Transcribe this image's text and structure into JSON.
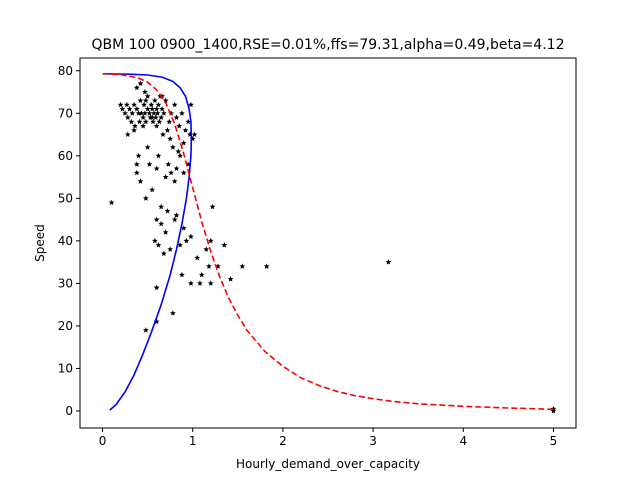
{
  "chart_data": {
    "type": "scatter",
    "title": "QBM 100 0900_1400,RSE=0.01%,ffs=79.31,alpha=0.49,beta=4.12",
    "xlabel": "Hourly_demand_over_capacity",
    "ylabel": "Speed",
    "xlim": [
      -0.25,
      5.25
    ],
    "ylim": [
      -4,
      83
    ],
    "xticks": [
      0,
      1,
      2,
      3,
      4,
      5
    ],
    "yticks": [
      0,
      10,
      20,
      30,
      40,
      50,
      60,
      70,
      80
    ],
    "grid": false,
    "legend": "none",
    "colors": {
      "scatter": "#000000",
      "blue_curve": "#0000ff",
      "red_curve": "#ff0000"
    },
    "series": [
      {
        "kind": "scatter",
        "marker": "star",
        "points": [
          [
            0.2,
            72
          ],
          [
            0.22,
            71
          ],
          [
            0.25,
            70
          ],
          [
            0.27,
            72
          ],
          [
            0.28,
            69
          ],
          [
            0.3,
            71
          ],
          [
            0.32,
            68
          ],
          [
            0.33,
            70
          ],
          [
            0.35,
            72
          ],
          [
            0.36,
            67
          ],
          [
            0.38,
            71
          ],
          [
            0.4,
            70
          ],
          [
            0.41,
            68
          ],
          [
            0.42,
            73
          ],
          [
            0.43,
            70
          ],
          [
            0.45,
            69
          ],
          [
            0.46,
            72
          ],
          [
            0.47,
            70
          ],
          [
            0.48,
            68
          ],
          [
            0.5,
            71
          ],
          [
            0.5,
            74
          ],
          [
            0.52,
            70
          ],
          [
            0.53,
            69
          ],
          [
            0.54,
            72
          ],
          [
            0.55,
            71
          ],
          [
            0.56,
            68
          ],
          [
            0.57,
            70
          ],
          [
            0.58,
            73
          ],
          [
            0.59,
            69
          ],
          [
            0.6,
            71
          ],
          [
            0.6,
            67
          ],
          [
            0.61,
            70
          ],
          [
            0.62,
            72
          ],
          [
            0.63,
            68
          ],
          [
            0.64,
            74
          ],
          [
            0.65,
            69
          ],
          [
            0.66,
            71
          ],
          [
            0.67,
            65
          ],
          [
            0.68,
            70
          ],
          [
            0.7,
            73
          ],
          [
            0.72,
            66
          ],
          [
            0.74,
            68
          ],
          [
            0.75,
            64
          ],
          [
            0.76,
            70
          ],
          [
            0.78,
            62
          ],
          [
            0.8,
            72
          ],
          [
            0.82,
            69
          ],
          [
            0.84,
            61
          ],
          [
            0.85,
            67
          ],
          [
            0.88,
            70
          ],
          [
            0.9,
            63
          ],
          [
            0.92,
            66
          ],
          [
            0.95,
            68
          ],
          [
            0.97,
            65
          ],
          [
            0.98,
            72
          ],
          [
            1.0,
            64
          ],
          [
            1.02,
            65
          ],
          [
            0.28,
            65
          ],
          [
            0.35,
            66
          ],
          [
            0.45,
            67
          ],
          [
            0.38,
            76
          ],
          [
            0.42,
            77
          ],
          [
            0.47,
            75
          ],
          [
            0.66,
            74
          ],
          [
            0.55,
            69
          ],
          [
            0.48,
            73
          ],
          [
            0.4,
            60
          ],
          [
            0.38,
            58
          ],
          [
            0.38,
            56
          ],
          [
            0.42,
            54
          ],
          [
            0.5,
            62
          ],
          [
            0.52,
            58
          ],
          [
            0.6,
            57
          ],
          [
            0.62,
            60
          ],
          [
            0.7,
            55
          ],
          [
            0.73,
            58
          ],
          [
            0.76,
            56
          ],
          [
            0.8,
            54
          ],
          [
            0.82,
            57
          ],
          [
            0.86,
            60
          ],
          [
            0.9,
            56
          ],
          [
            0.95,
            58
          ],
          [
            0.55,
            52
          ],
          [
            0.65,
            48
          ],
          [
            0.1,
            49
          ],
          [
            0.48,
            50
          ],
          [
            0.6,
            45
          ],
          [
            0.65,
            44
          ],
          [
            0.72,
            47
          ],
          [
            0.8,
            45
          ],
          [
            0.82,
            46
          ],
          [
            0.9,
            43
          ],
          [
            0.58,
            40
          ],
          [
            0.62,
            39
          ],
          [
            0.68,
            37
          ],
          [
            0.7,
            42
          ],
          [
            0.75,
            38
          ],
          [
            0.86,
            39
          ],
          [
            0.93,
            40
          ],
          [
            0.98,
            41
          ],
          [
            1.05,
            36
          ],
          [
            1.1,
            32
          ],
          [
            1.15,
            38
          ],
          [
            1.18,
            34
          ],
          [
            1.2,
            40
          ],
          [
            1.22,
            48
          ],
          [
            1.28,
            34
          ],
          [
            1.35,
            39
          ],
          [
            1.42,
            31
          ],
          [
            1.55,
            34
          ],
          [
            1.82,
            34
          ],
          [
            3.17,
            35
          ],
          [
            0.6,
            29
          ],
          [
            0.78,
            23
          ],
          [
            0.48,
            19
          ],
          [
            0.6,
            21
          ],
          [
            0.88,
            32
          ],
          [
            0.98,
            30
          ],
          [
            1.08,
            30
          ],
          [
            1.2,
            30
          ],
          [
            5.0,
            0.5
          ],
          [
            5.0,
            0
          ]
        ]
      },
      {
        "kind": "line",
        "style": "solid",
        "color": "#0000ff",
        "points": [
          [
            0.08,
            0.2
          ],
          [
            0.15,
            1.5
          ],
          [
            0.25,
            4.5
          ],
          [
            0.35,
            8.5
          ],
          [
            0.45,
            13.5
          ],
          [
            0.55,
            19
          ],
          [
            0.65,
            25
          ],
          [
            0.75,
            32
          ],
          [
            0.82,
            38
          ],
          [
            0.88,
            44
          ],
          [
            0.93,
            50
          ],
          [
            0.96,
            55
          ],
          [
            0.98,
            60
          ],
          [
            0.985,
            64
          ],
          [
            0.98,
            68
          ],
          [
            0.96,
            71
          ],
          [
            0.92,
            74
          ],
          [
            0.86,
            76
          ],
          [
            0.78,
            77.5
          ],
          [
            0.66,
            78.5
          ],
          [
            0.5,
            79
          ],
          [
            0.3,
            79.2
          ],
          [
            0.0,
            79.3
          ]
        ]
      },
      {
        "kind": "line",
        "style": "dashed",
        "color": "#ff0000",
        "points": [
          [
            0.0,
            79.3
          ],
          [
            0.2,
            79.1
          ],
          [
            0.4,
            78.3
          ],
          [
            0.5,
            77.3
          ],
          [
            0.6,
            75.5
          ],
          [
            0.7,
            72.5
          ],
          [
            0.8,
            67.5
          ],
          [
            0.9,
            60.5
          ],
          [
            1.0,
            52.5
          ],
          [
            1.1,
            44.5
          ],
          [
            1.2,
            37.5
          ],
          [
            1.3,
            31.5
          ],
          [
            1.4,
            26.5
          ],
          [
            1.5,
            22.5
          ],
          [
            1.6,
            19
          ],
          [
            1.8,
            14
          ],
          [
            2.0,
            10.5
          ],
          [
            2.2,
            7.8
          ],
          [
            2.4,
            6.0
          ],
          [
            2.6,
            4.6
          ],
          [
            2.8,
            3.6
          ],
          [
            3.0,
            2.9
          ],
          [
            3.2,
            2.3
          ],
          [
            3.5,
            1.7
          ],
          [
            4.0,
            1.1
          ],
          [
            4.5,
            0.7
          ],
          [
            5.0,
            0.4
          ]
        ]
      }
    ]
  }
}
